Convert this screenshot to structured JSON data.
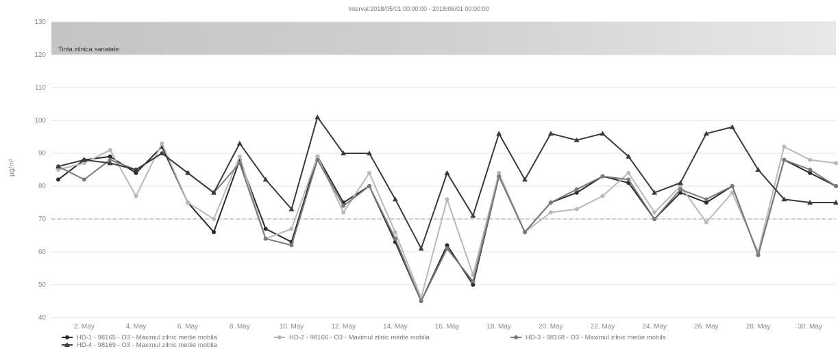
{
  "chart_data": {
    "type": "line",
    "title": "Interval:2018/05/01 00:00:00 - 2018/06/01 00:00:00",
    "ylabel": "µg/m³",
    "ylim": [
      40,
      130
    ],
    "yticks": [
      40,
      50,
      60,
      70,
      80,
      90,
      100,
      110,
      120,
      130
    ],
    "grid": true,
    "threshold_line": 70,
    "band": {
      "from": 120,
      "to": 130,
      "label": "Tinta zilnica sanatate"
    },
    "x_tick_labels": [
      "2. May",
      "4. May",
      "6. May",
      "8. May",
      "10. May",
      "12. May",
      "14. May",
      "16. May",
      "18. May",
      "20. May",
      "22. May",
      "24. May",
      "26. May",
      "28. May",
      "30. May"
    ],
    "categories": [
      "1 May",
      "2 May",
      "3 May",
      "4 May",
      "5 May",
      "6 May",
      "7 May",
      "8 May",
      "9 May",
      "10 May",
      "11 May",
      "12 May",
      "13 May",
      "14 May",
      "15 May",
      "16 May",
      "17 May",
      "18 May",
      "19 May",
      "20 May",
      "21 May",
      "22 May",
      "23 May",
      "24 May",
      "25 May",
      "26 May",
      "27 May",
      "28 May",
      "29 May",
      "30 May",
      "31 May"
    ],
    "series": [
      {
        "name": "HD-1 - 98165 - O3 - Maximul zilnic medie mobila",
        "color": "#2a2a2a",
        "marker": "circle",
        "values": [
          82,
          88,
          89,
          84,
          92,
          75,
          66,
          88,
          67,
          63,
          89,
          75,
          80,
          63,
          45,
          62,
          50,
          83,
          66,
          75,
          78,
          83,
          81,
          70,
          78,
          75,
          80,
          59,
          88,
          84,
          80
        ]
      },
      {
        "name": "HD-2 - 98166 - O3 - Maximul zilnic medie mobila",
        "color": "#b8b8b8",
        "marker": "circle",
        "values": [
          85,
          87,
          91,
          77,
          93,
          75,
          70,
          89,
          64,
          67,
          89,
          72,
          84,
          66,
          46,
          76,
          53,
          84,
          66,
          72,
          73,
          77,
          84,
          72,
          80,
          69,
          78,
          60,
          92,
          88,
          87
        ]
      },
      {
        "name": "HD-3 - 98168 - O3 - Maximul zilnic medie mobila",
        "color": "#7a7a7a",
        "marker": "circle",
        "values": [
          86,
          82,
          88,
          85,
          90,
          84,
          78,
          87,
          64,
          62,
          88,
          74,
          80,
          64,
          45,
          61,
          51,
          83,
          66,
          75,
          79,
          83,
          82,
          70,
          79,
          76,
          80,
          59,
          88,
          85,
          80
        ]
      },
      {
        "name": "HD-4 - 98169 - O3 - Maximul zilnic medie mobila",
        "color": "#3a3a3a",
        "marker": "triangle",
        "values": [
          86,
          88,
          87,
          85,
          90,
          84,
          78,
          93,
          82,
          73,
          101,
          90,
          90,
          76,
          61,
          84,
          71,
          96,
          82,
          96,
          94,
          96,
          89,
          78,
          81,
          96,
          98,
          85,
          76,
          75,
          75
        ]
      }
    ]
  }
}
